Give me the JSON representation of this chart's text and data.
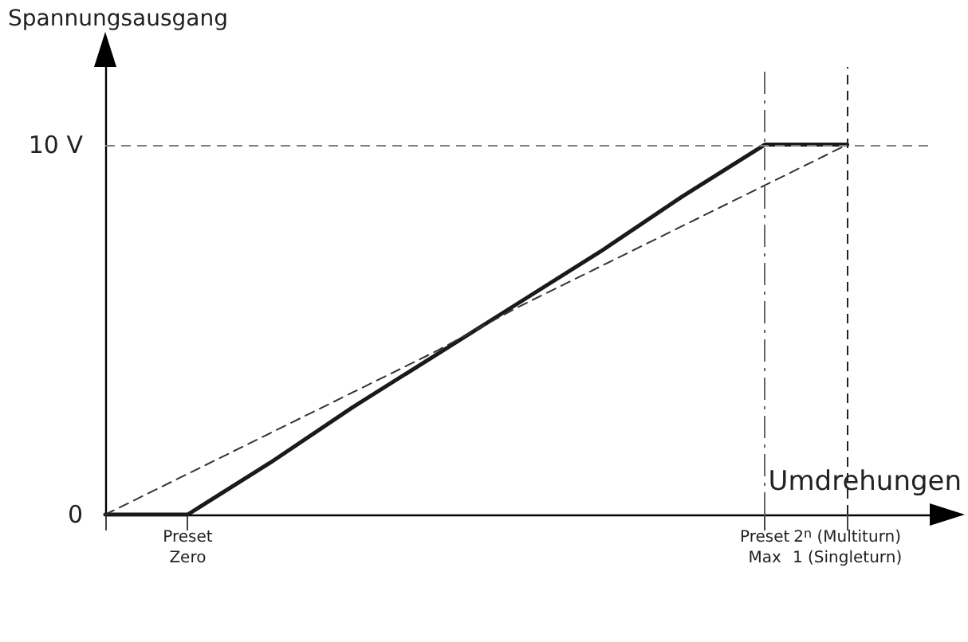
{
  "chart_data": {
    "type": "line",
    "title": "Spannungsausgang",
    "xlabel": "Umdrehungen",
    "categories": [
      null,
      "Preset\nZero",
      null,
      null,
      null,
      null,
      null,
      null,
      "Preset\nMax",
      "2$^{n}$ (Multiturn)\n1 (Singleturn)",
      null
    ],
    "ylim": [
      0,
      12.1
    ],
    "yticks": [
      0,
      {
        "value": 10,
        "label": "10 V"
      }
    ],
    "series": [
      {
        "color": "#1a1a1a",
        "values": [
          0,
          0,
          1.4,
          2.9,
          4.3,
          5.7,
          7.1,
          8.6,
          10,
          10,
          null
        ],
        "line_style": "solid"
      },
      {
        "color": "#333333",
        "values": [
          0,
          1.1,
          2.2,
          3.3,
          4.4,
          5.6,
          6.7,
          7.8,
          8.9,
          10,
          null
        ],
        "line_style": "dashed"
      }
    ],
    "ref_lines": [
      {
        "axis": "y",
        "value": 10,
        "color": "#808080",
        "line_style": "dashed"
      },
      {
        "axis": "x",
        "value": "Preset\nMax",
        "color": "#666666",
        "line_style": "dashdot"
      },
      {
        "axis": "x",
        "value": "2$^{n}$ (Multiturn)\n1 (Singleturn)",
        "color": "#222222",
        "line_style": "dashed"
      }
    ],
    "grid": false,
    "marker": "none"
  }
}
